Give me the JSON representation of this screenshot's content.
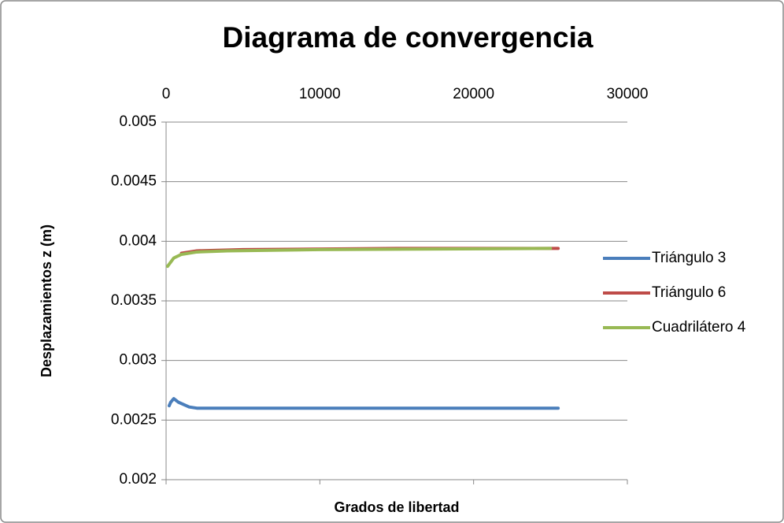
{
  "chart_data": {
    "type": "line",
    "title": "Diagrama de convergencia",
    "xlabel": "Grados de libertad",
    "ylabel": "Desplazamientos z (m)",
    "xlim": [
      0,
      30000
    ],
    "xticks": [
      0,
      10000,
      20000,
      30000
    ],
    "ylim": [
      0.002,
      0.005
    ],
    "yticks": [
      0.002,
      0.0025,
      0.003,
      0.0035,
      0.004,
      0.0045,
      0.005
    ],
    "grid": true,
    "legend": "right",
    "series": [
      {
        "name": "Triángulo 3",
        "color": "#4a7ebb",
        "x": [
          200,
          300,
          500,
          800,
          1500,
          2000,
          5000,
          12000,
          25500
        ],
        "values": [
          0.00262,
          0.00265,
          0.00268,
          0.00265,
          0.00261,
          0.0026,
          0.0026,
          0.0026,
          0.0026
        ]
      },
      {
        "name": "Triángulo 6",
        "color": "#be4b48",
        "x": [
          1000,
          2000,
          5000,
          15000,
          25500
        ],
        "values": [
          0.0039,
          0.00392,
          0.00393,
          0.00394,
          0.00394
        ]
      },
      {
        "name": "Cuadrilátero 4",
        "color": "#98b954",
        "x": [
          100,
          500,
          1000,
          2000,
          4000,
          10000,
          25000
        ],
        "values": [
          0.00379,
          0.00386,
          0.00389,
          0.00391,
          0.00392,
          0.00393,
          0.00394
        ]
      }
    ]
  }
}
